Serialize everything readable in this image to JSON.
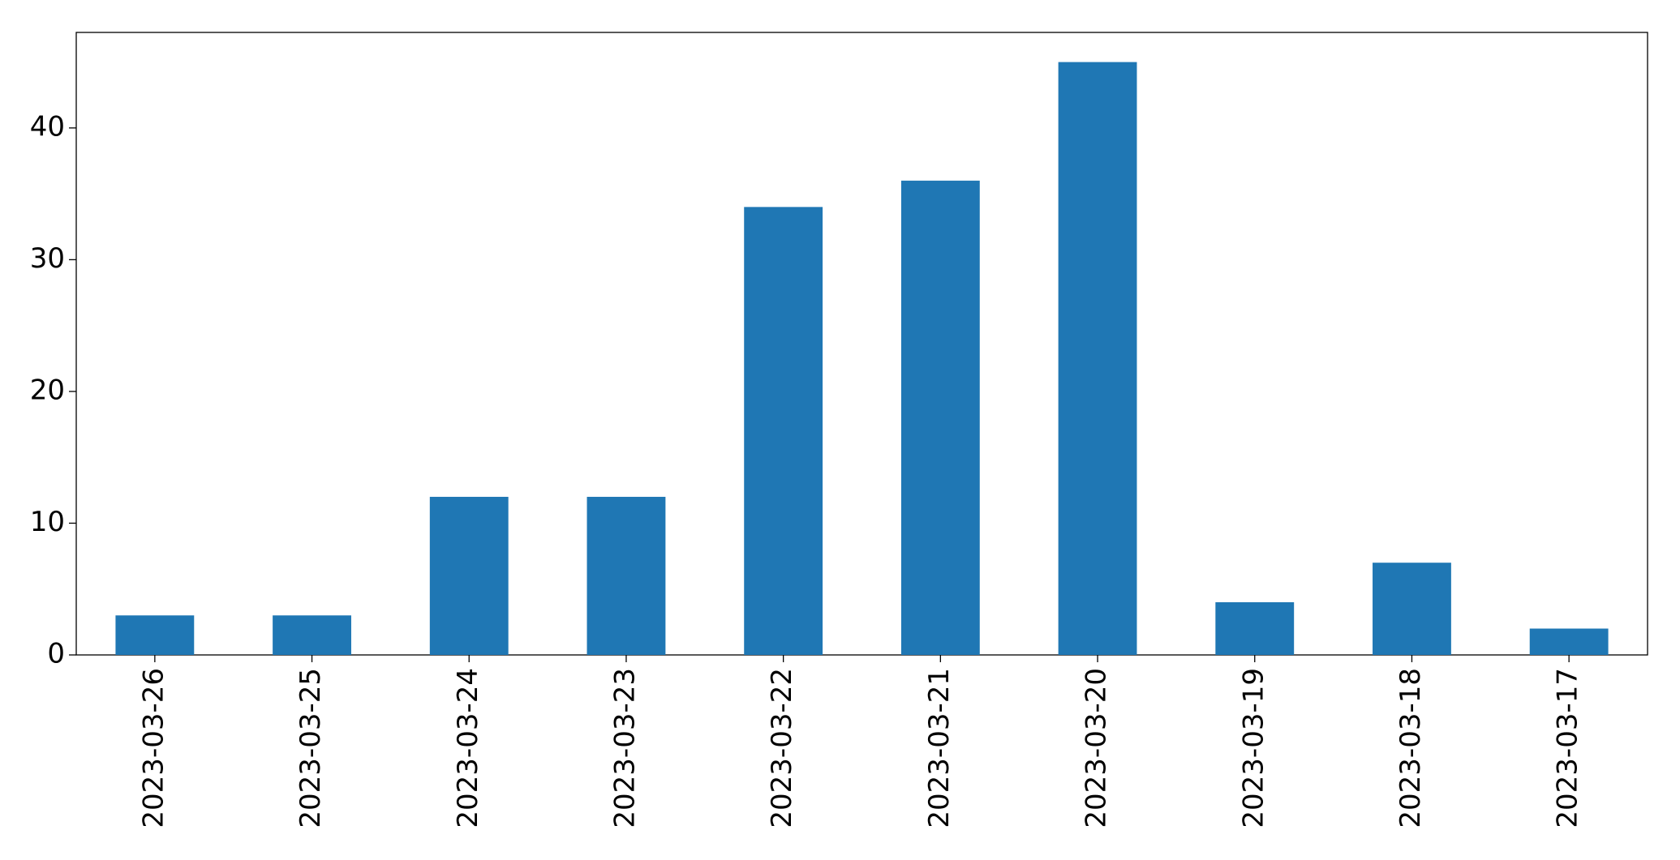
{
  "chart_data": {
    "type": "bar",
    "categories": [
      "2023-03-26",
      "2023-03-25",
      "2023-03-24",
      "2023-03-23",
      "2023-03-22",
      "2023-03-21",
      "2023-03-20",
      "2023-03-19",
      "2023-03-18",
      "2023-03-17"
    ],
    "values": [
      3,
      3,
      12,
      12,
      34,
      36,
      45,
      4,
      7,
      2
    ],
    "color": "#1f77b4",
    "ylim": [
      0,
      47.25
    ],
    "yticks": [
      0,
      10,
      20,
      30,
      40
    ],
    "grid": false
  }
}
